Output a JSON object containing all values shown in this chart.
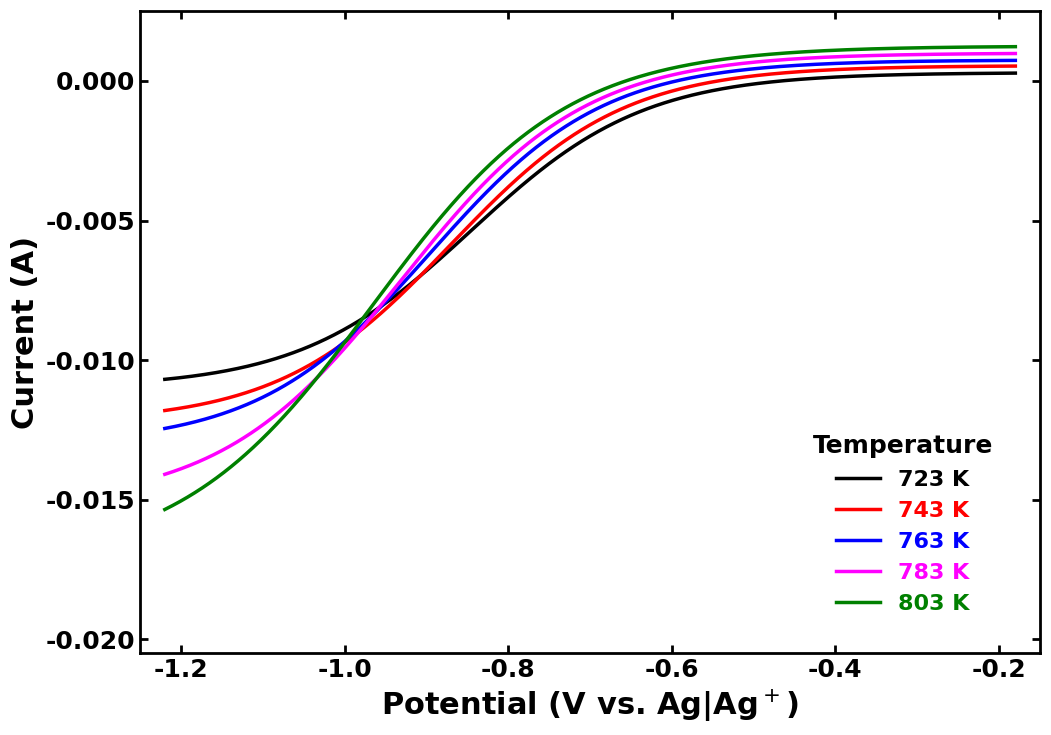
{
  "temperatures": [
    723,
    743,
    763,
    783,
    803
  ],
  "colors": [
    "#000000",
    "#ff0000",
    "#0000ff",
    "#ff00ff",
    "#008000"
  ],
  "legend_label_colors": [
    "#000000",
    "#ff0000",
    "#0000ff",
    "#ff00ff",
    "#008000"
  ],
  "xlabel": "Potential (V vs. Ag|Ag$^+$)",
  "ylabel": "Current (A)",
  "xlim": [
    -1.25,
    -0.15
  ],
  "ylim": [
    -0.0205,
    0.0025
  ],
  "xticks": [
    -1.2,
    -1.0,
    -0.8,
    -0.6,
    -0.4,
    -0.2
  ],
  "yticks": [
    -0.02,
    -0.015,
    -0.01,
    -0.005,
    0.0
  ],
  "legend_title": "Temperature",
  "legend_labels": [
    "723 K",
    "743 K",
    "763 K",
    "783 K",
    "803 K"
  ],
  "sigmoid_params": [
    {
      "I_lim": -0.0113,
      "E_half": -0.845,
      "k": 9.5,
      "I_plateau": 0.0003
    },
    {
      "I_lim": -0.0128,
      "E_half": -0.87,
      "k": 9.5,
      "I_plateau": 0.00055
    },
    {
      "I_lim": -0.0138,
      "E_half": -0.895,
      "k": 9.5,
      "I_plateau": 0.00075
    },
    {
      "I_lim": -0.0162,
      "E_half": -0.93,
      "k": 9.0,
      "I_plateau": 0.001
    },
    {
      "I_lim": -0.0185,
      "E_half": -0.965,
      "k": 8.5,
      "I_plateau": 0.00125
    }
  ],
  "linewidth": 2.5,
  "background_color": "#ffffff",
  "xlabel_fontsize": 22,
  "ylabel_fontsize": 22,
  "tick_fontsize": 18,
  "legend_fontsize": 16,
  "legend_title_fontsize": 18
}
